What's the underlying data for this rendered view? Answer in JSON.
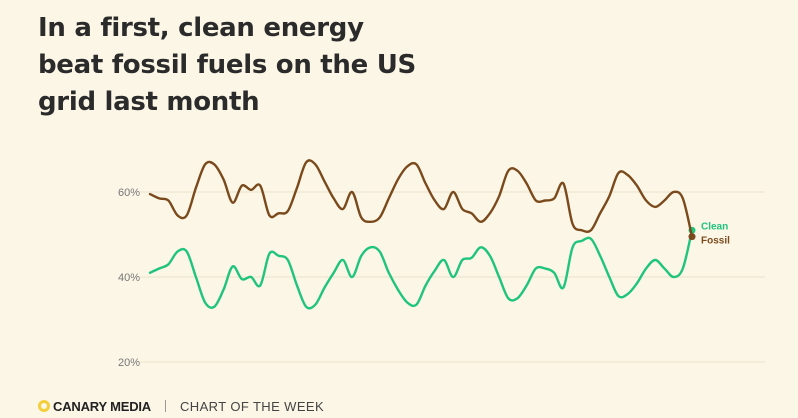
{
  "headline": {
    "lines": [
      "In a first, clean energy",
      "beat fossil fuels on the US",
      "grid last month"
    ]
  },
  "footer": {
    "brand": "CANARY MEDIA",
    "tagline": "CHART OF THE WEEK"
  },
  "colors": {
    "clean": "#1fc47d",
    "fossil": "#7a4a1c",
    "grid": "#ebe3cc",
    "background": "#fbf6e6",
    "logo": "#f3cf3c"
  },
  "chart_data": {
    "type": "line",
    "ylim": [
      20,
      66
    ],
    "yticks": [
      20,
      40,
      60
    ],
    "ytick_labels": [
      "20%",
      "40%",
      "60%"
    ],
    "grid": true,
    "legend": "end-of-line labels",
    "series": [
      {
        "name": "Clean",
        "color": "#1fc47d",
        "values": [
          41,
          42,
          43,
          46,
          46,
          40,
          34,
          33,
          37,
          42.5,
          39.5,
          40,
          38,
          45.5,
          45,
          44,
          38,
          33,
          33.5,
          37.5,
          41,
          44,
          40,
          45,
          47,
          46,
          41,
          37,
          34,
          33.5,
          38,
          41.5,
          44,
          40,
          44,
          44.5,
          47,
          45,
          40,
          35,
          35,
          38,
          42,
          42,
          41,
          37.5,
          47,
          48.5,
          49,
          45,
          40,
          35.5,
          36,
          38.5,
          42,
          44,
          42,
          40,
          42,
          51
        ]
      },
      {
        "name": "Fossil",
        "color": "#7a4a1c",
        "values": [
          59.5,
          58.5,
          58,
          54.5,
          54.5,
          61,
          66.5,
          66.5,
          63,
          57.5,
          61.5,
          60.5,
          61.5,
          54.5,
          55,
          55.5,
          61,
          67,
          66.5,
          62.5,
          58.5,
          56,
          60,
          54,
          53,
          54,
          58.5,
          63,
          66,
          66.5,
          62,
          58,
          56,
          60,
          56,
          55,
          53,
          55,
          59,
          65,
          65,
          62,
          58,
          58,
          58.5,
          62,
          52.5,
          51,
          51,
          55,
          59,
          64.5,
          64,
          61.5,
          58,
          56.5,
          58,
          60,
          58.5,
          49.5
        ]
      }
    ]
  }
}
